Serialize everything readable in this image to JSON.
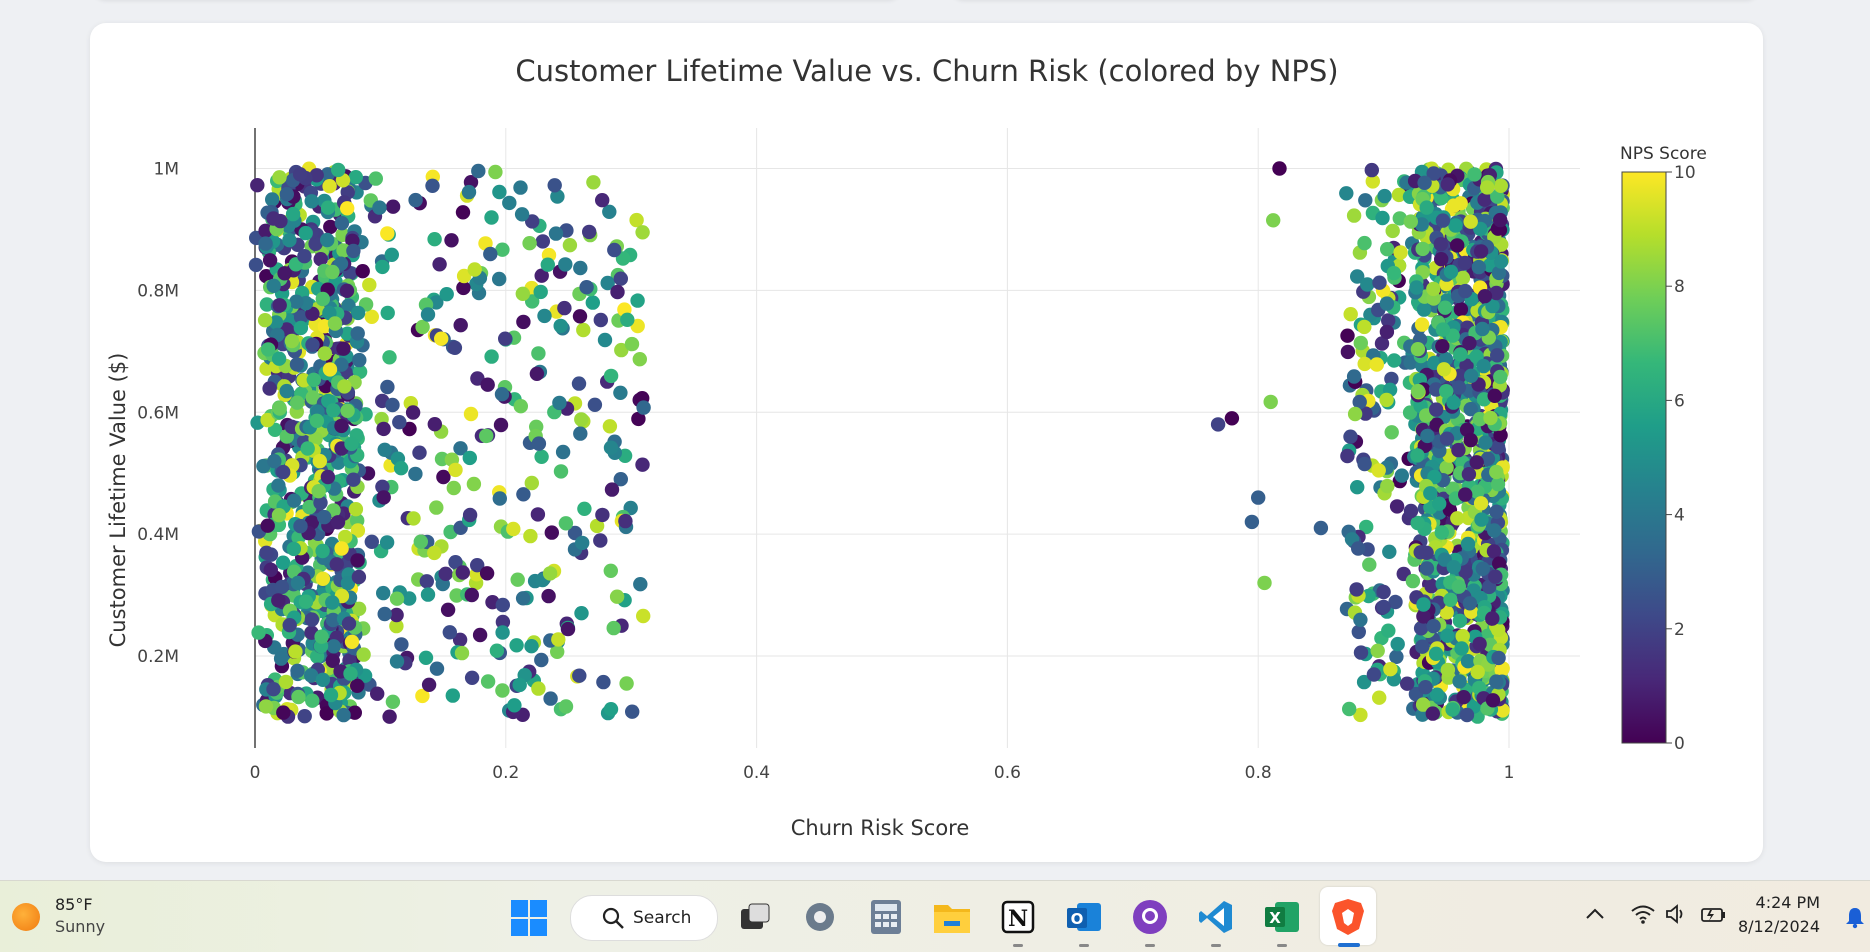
{
  "chart_data": {
    "type": "scatter",
    "title": "Customer Lifetime Value vs. Churn Risk (colored by NPS)",
    "xlabel": "Churn Risk Score",
    "ylabel": "Customer Lifetime Value ($)",
    "xlim": [
      0,
      1.05
    ],
    "ylim": [
      40000,
      1070000
    ],
    "x_ticks": [
      {
        "value": 0,
        "label": "0"
      },
      {
        "value": 0.2,
        "label": "0.2"
      },
      {
        "value": 0.4,
        "label": "0.4"
      },
      {
        "value": 0.6,
        "label": "0.6"
      },
      {
        "value": 0.8,
        "label": "0.8"
      },
      {
        "value": 1,
        "label": "1"
      }
    ],
    "y_ticks": [
      {
        "value": 200000,
        "label": "0.2M"
      },
      {
        "value": 400000,
        "label": "0.4M"
      },
      {
        "value": 600000,
        "label": "0.6M"
      },
      {
        "value": 800000,
        "label": "0.8M"
      },
      {
        "value": 1000000,
        "label": "1M"
      }
    ],
    "grid": true,
    "colorscale": "Viridis",
    "colorscale_stops": [
      "#440154",
      "#482878",
      "#3e4989",
      "#31688e",
      "#26828e",
      "#1f9e89",
      "#35b779",
      "#6ece58",
      "#b5de2b",
      "#fde725"
    ],
    "colorbar": {
      "title": "NPS Score",
      "range": [
        0,
        10
      ],
      "ticks": [
        {
          "value": 0,
          "label": "0"
        },
        {
          "value": 2,
          "label": "2"
        },
        {
          "value": 4,
          "label": "4"
        },
        {
          "value": 6,
          "label": "6"
        },
        {
          "value": 8,
          "label": "8"
        },
        {
          "value": 10,
          "label": "10"
        }
      ]
    },
    "clusters": [
      {
        "x_min": 0.0,
        "x_max": 0.32,
        "y_min": 100000,
        "y_max": 1000000,
        "nps_range": [
          0,
          10
        ],
        "approx_points": 1100,
        "density": "highest near x=0.02-0.08"
      },
      {
        "x_min": 0.86,
        "x_max": 0.995,
        "y_min": 100000,
        "y_max": 1000000,
        "nps_range": [
          0,
          10
        ],
        "approx_points": 1300,
        "density": "highest near x=0.93-0.99"
      }
    ],
    "outliers": [
      {
        "x": 0.768,
        "y": 580000,
        "nps": 2
      },
      {
        "x": 0.779,
        "y": 590000,
        "nps": 0
      },
      {
        "x": 0.795,
        "y": 420000,
        "nps": 3
      },
      {
        "x": 0.8,
        "y": 460000,
        "nps": 3
      },
      {
        "x": 0.805,
        "y": 320000,
        "nps": 8
      },
      {
        "x": 0.81,
        "y": 617000,
        "nps": 8
      },
      {
        "x": 0.812,
        "y": 915000,
        "nps": 8
      },
      {
        "x": 0.817,
        "y": 1000000,
        "nps": 0
      },
      {
        "x": 0.85,
        "y": 410000,
        "nps": 3
      }
    ]
  },
  "taskbar": {
    "weather_temp": "85°F",
    "weather_desc": "Sunny",
    "search_label": "Search",
    "clock_time": "4:24 PM",
    "clock_date": "8/12/2024"
  }
}
